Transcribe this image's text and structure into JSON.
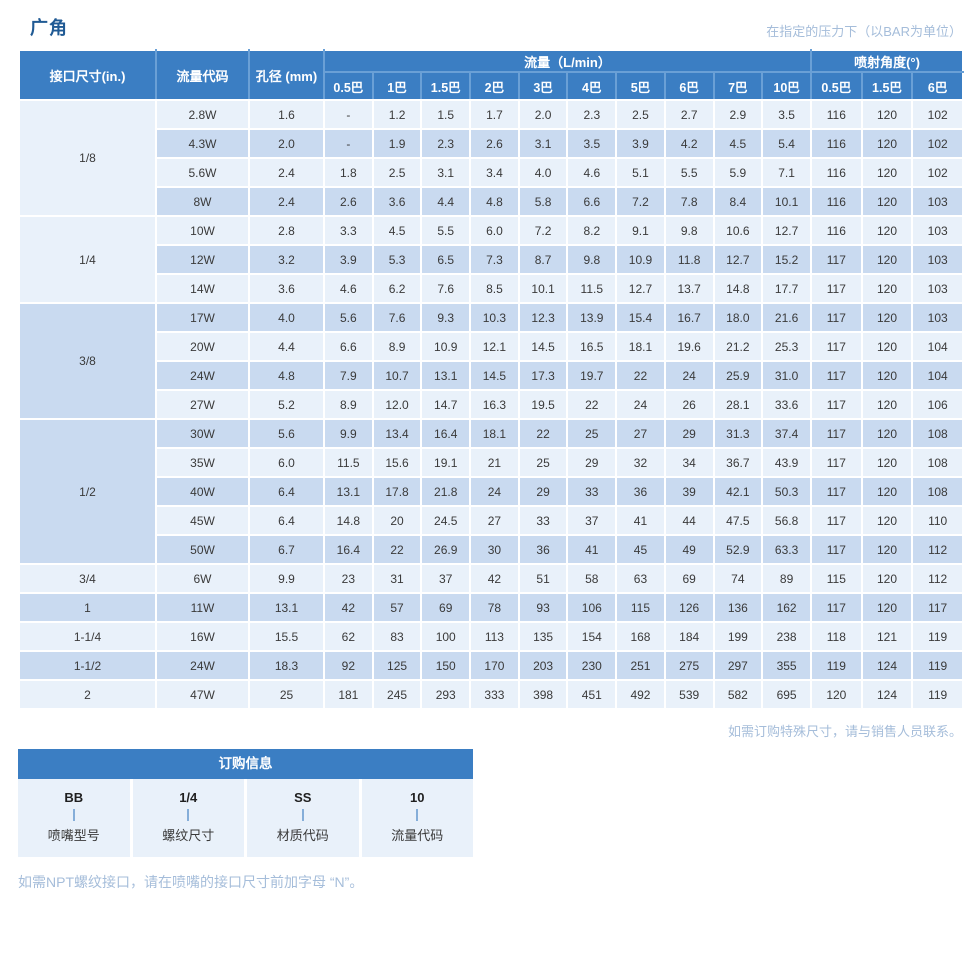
{
  "page": {
    "title": "广角",
    "pressure_note": "在指定的压力下（以BAR为单位）",
    "special_size_note": "如需订购特殊尺寸，请与销售人员联系。",
    "npt_note": "如需NPT螺纹接口，请在喷嘴的接口尺寸前加字母 “N”。"
  },
  "colors": {
    "header_blue": "#3b7ec3",
    "header_line": "#6aa0d6",
    "row_light": "#e9f1fa",
    "row_dark": "#c9daf0",
    "note_text": "#a5bdda",
    "title_color": "#205a94"
  },
  "table": {
    "columns": {
      "size": "接口尺寸(in.)",
      "code": "流量代码",
      "bore": "孔径 (mm)"
    },
    "flow_header": "流量（L/min）",
    "angle_header": "喷射角度(°)",
    "flow_pressures": [
      "0.5巴",
      "1巴",
      "1.5巴",
      "2巴",
      "3巴",
      "4巴",
      "5巴",
      "6巴",
      "7巴",
      "10巴"
    ],
    "angle_pressures": [
      "0.5巴",
      "1.5巴",
      "6巴"
    ],
    "groups": [
      {
        "size": "1/8",
        "rows": [
          {
            "code": "2.8W",
            "bore": "1.6",
            "flows": [
              "-",
              "1.2",
              "1.5",
              "1.7",
              "2.0",
              "2.3",
              "2.5",
              "2.7",
              "2.9",
              "3.5"
            ],
            "angles": [
              "116",
              "120",
              "102"
            ]
          },
          {
            "code": "4.3W",
            "bore": "2.0",
            "flows": [
              "-",
              "1.9",
              "2.3",
              "2.6",
              "3.1",
              "3.5",
              "3.9",
              "4.2",
              "4.5",
              "5.4"
            ],
            "angles": [
              "116",
              "120",
              "102"
            ]
          },
          {
            "code": "5.6W",
            "bore": "2.4",
            "flows": [
              "1.8",
              "2.5",
              "3.1",
              "3.4",
              "4.0",
              "4.6",
              "5.1",
              "5.5",
              "5.9",
              "7.1"
            ],
            "angles": [
              "116",
              "120",
              "102"
            ]
          },
          {
            "code": "8W",
            "bore": "2.4",
            "flows": [
              "2.6",
              "3.6",
              "4.4",
              "4.8",
              "5.8",
              "6.6",
              "7.2",
              "7.8",
              "8.4",
              "10.1"
            ],
            "angles": [
              "116",
              "120",
              "103"
            ]
          }
        ]
      },
      {
        "size": "1/4",
        "rows": [
          {
            "code": "10W",
            "bore": "2.8",
            "flows": [
              "3.3",
              "4.5",
              "5.5",
              "6.0",
              "7.2",
              "8.2",
              "9.1",
              "9.8",
              "10.6",
              "12.7"
            ],
            "angles": [
              "116",
              "120",
              "103"
            ]
          },
          {
            "code": "12W",
            "bore": "3.2",
            "flows": [
              "3.9",
              "5.3",
              "6.5",
              "7.3",
              "8.7",
              "9.8",
              "10.9",
              "11.8",
              "12.7",
              "15.2"
            ],
            "angles": [
              "117",
              "120",
              "103"
            ]
          },
          {
            "code": "14W",
            "bore": "3.6",
            "flows": [
              "4.6",
              "6.2",
              "7.6",
              "8.5",
              "10.1",
              "11.5",
              "12.7",
              "13.7",
              "14.8",
              "17.7"
            ],
            "angles": [
              "117",
              "120",
              "103"
            ]
          }
        ]
      },
      {
        "size": "3/8",
        "rows": [
          {
            "code": "17W",
            "bore": "4.0",
            "flows": [
              "5.6",
              "7.6",
              "9.3",
              "10.3",
              "12.3",
              "13.9",
              "15.4",
              "16.7",
              "18.0",
              "21.6"
            ],
            "angles": [
              "117",
              "120",
              "103"
            ]
          },
          {
            "code": "20W",
            "bore": "4.4",
            "flows": [
              "6.6",
              "8.9",
              "10.9",
              "12.1",
              "14.5",
              "16.5",
              "18.1",
              "19.6",
              "21.2",
              "25.3"
            ],
            "angles": [
              "117",
              "120",
              "104"
            ]
          },
          {
            "code": "24W",
            "bore": "4.8",
            "flows": [
              "7.9",
              "10.7",
              "13.1",
              "14.5",
              "17.3",
              "19.7",
              "22",
              "24",
              "25.9",
              "31.0"
            ],
            "angles": [
              "117",
              "120",
              "104"
            ]
          },
          {
            "code": "27W",
            "bore": "5.2",
            "flows": [
              "8.9",
              "12.0",
              "14.7",
              "16.3",
              "19.5",
              "22",
              "24",
              "26",
              "28.1",
              "33.6"
            ],
            "angles": [
              "117",
              "120",
              "106"
            ]
          }
        ]
      },
      {
        "size": "1/2",
        "rows": [
          {
            "code": "30W",
            "bore": "5.6",
            "flows": [
              "9.9",
              "13.4",
              "16.4",
              "18.1",
              "22",
              "25",
              "27",
              "29",
              "31.3",
              "37.4"
            ],
            "angles": [
              "117",
              "120",
              "108"
            ]
          },
          {
            "code": "35W",
            "bore": "6.0",
            "flows": [
              "11.5",
              "15.6",
              "19.1",
              "21",
              "25",
              "29",
              "32",
              "34",
              "36.7",
              "43.9"
            ],
            "angles": [
              "117",
              "120",
              "108"
            ]
          },
          {
            "code": "40W",
            "bore": "6.4",
            "flows": [
              "13.1",
              "17.8",
              "21.8",
              "24",
              "29",
              "33",
              "36",
              "39",
              "42.1",
              "50.3"
            ],
            "angles": [
              "117",
              "120",
              "108"
            ]
          },
          {
            "code": "45W",
            "bore": "6.4",
            "flows": [
              "14.8",
              "20",
              "24.5",
              "27",
              "33",
              "37",
              "41",
              "44",
              "47.5",
              "56.8"
            ],
            "angles": [
              "117",
              "120",
              "110"
            ]
          },
          {
            "code": "50W",
            "bore": "6.7",
            "flows": [
              "16.4",
              "22",
              "26.9",
              "30",
              "36",
              "41",
              "45",
              "49",
              "52.9",
              "63.3"
            ],
            "angles": [
              "117",
              "120",
              "112"
            ]
          }
        ]
      },
      {
        "size": "3/4",
        "rows": [
          {
            "code": "6W",
            "bore": "9.9",
            "flows": [
              "23",
              "31",
              "37",
              "42",
              "51",
              "58",
              "63",
              "69",
              "74",
              "89"
            ],
            "angles": [
              "115",
              "120",
              "112"
            ]
          }
        ]
      },
      {
        "size": "1",
        "rows": [
          {
            "code": "11W",
            "bore": "13.1",
            "flows": [
              "42",
              "57",
              "69",
              "78",
              "93",
              "106",
              "115",
              "126",
              "136",
              "162"
            ],
            "angles": [
              "117",
              "120",
              "117"
            ]
          }
        ]
      },
      {
        "size": "1-1/4",
        "rows": [
          {
            "code": "16W",
            "bore": "15.5",
            "flows": [
              "62",
              "83",
              "100",
              "113",
              "135",
              "154",
              "168",
              "184",
              "199",
              "238"
            ],
            "angles": [
              "118",
              "121",
              "119"
            ]
          }
        ]
      },
      {
        "size": "1-1/2",
        "rows": [
          {
            "code": "24W",
            "bore": "18.3",
            "flows": [
              "92",
              "125",
              "150",
              "170",
              "203",
              "230",
              "251",
              "275",
              "297",
              "355"
            ],
            "angles": [
              "119",
              "124",
              "119"
            ]
          }
        ]
      },
      {
        "size": "2",
        "rows": [
          {
            "code": "47W",
            "bore": "25",
            "flows": [
              "181",
              "245",
              "293",
              "333",
              "398",
              "451",
              "492",
              "539",
              "582",
              "695"
            ],
            "angles": [
              "120",
              "124",
              "119"
            ]
          }
        ]
      }
    ]
  },
  "order_info": {
    "header": "订购信息",
    "items": [
      {
        "code": "BB",
        "label": "喷嘴型号"
      },
      {
        "code": "1/4",
        "label": "螺纹尺寸"
      },
      {
        "code": "SS",
        "label": "材质代码"
      },
      {
        "code": "10",
        "label": "流量代码"
      }
    ]
  }
}
